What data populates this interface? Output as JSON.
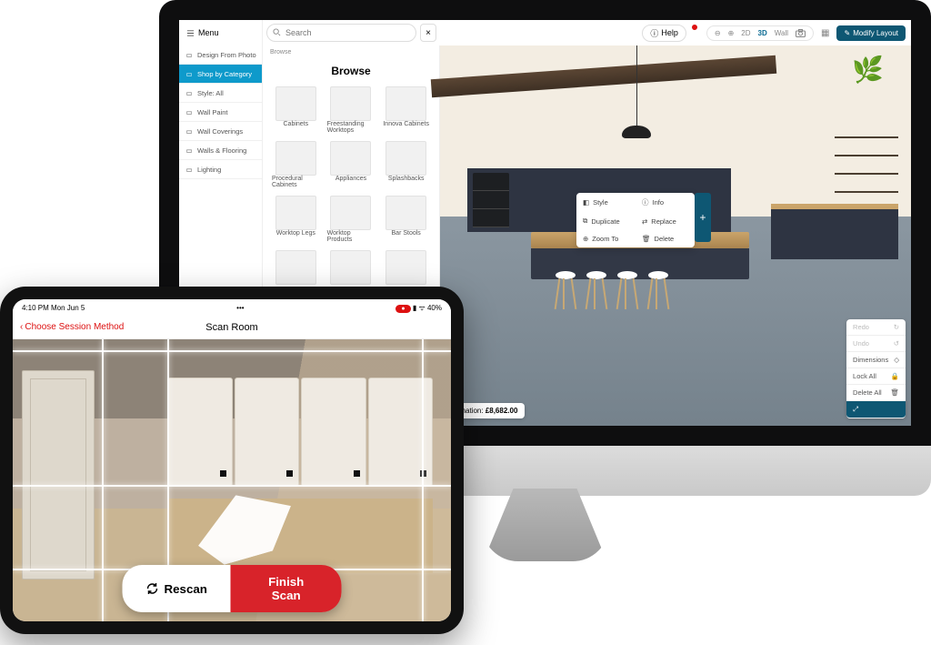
{
  "colors": {
    "brand_teal": "#0e5773",
    "brand_cyan": "#0e9acb",
    "brand_red": "#d8232a",
    "wood": "#caa46a",
    "navy_cab": "#2e3442",
    "floor": "#8b97a1"
  },
  "desktop": {
    "menu_label": "Menu",
    "search_placeholder": "Search",
    "help_label": "Help",
    "view_modes": {
      "zoom_out": "−",
      "zoom_in": "+",
      "two_d": "2D",
      "three_d": "3D",
      "wall": "Wall",
      "camera": "📷"
    },
    "modify_label": "Modify Layout",
    "sidebar": [
      {
        "label": "Design From Photo",
        "active": false
      },
      {
        "label": "Shop by Category",
        "active": true
      },
      {
        "label": "Style: All",
        "active": false
      },
      {
        "label": "Wall Paint",
        "active": false
      },
      {
        "label": "Wall Coverings",
        "active": false
      },
      {
        "label": "Walls & Flooring",
        "active": false
      },
      {
        "label": "Lighting",
        "active": false
      }
    ],
    "catalog": {
      "crumb": "Browse",
      "heading": "Browse",
      "items": [
        "Cabinets",
        "Freestanding Worktops",
        "Innova Cabinets",
        "Procedural Cabinets",
        "Appliances",
        "Splashbacks",
        "Worktop Legs",
        "Worktop Products",
        "Bar Stools",
        "",
        "",
        ""
      ]
    },
    "context_menu": {
      "items": [
        "Style",
        "Info",
        "Duplicate",
        "Replace",
        "Zoom To",
        "Delete"
      ],
      "plus": "+"
    },
    "estimation_label": "Estimation:",
    "estimation_value": "£8,682.00",
    "right_tools": [
      {
        "label": "Redo",
        "dim": true
      },
      {
        "label": "Undo",
        "dim": true
      },
      {
        "label": "Dimensions",
        "dim": false
      },
      {
        "label": "Lock All",
        "dim": false
      },
      {
        "label": "Delete All",
        "dim": false
      }
    ]
  },
  "ipad": {
    "status": {
      "time": "4:10 PM  Mon Jun 5",
      "rec": "●",
      "battery": "▮ ᯤ 40%"
    },
    "back_label": "Choose Session Method",
    "title": "Scan Room",
    "rescan_label": "Rescan",
    "finish_label": "Finish Scan"
  }
}
